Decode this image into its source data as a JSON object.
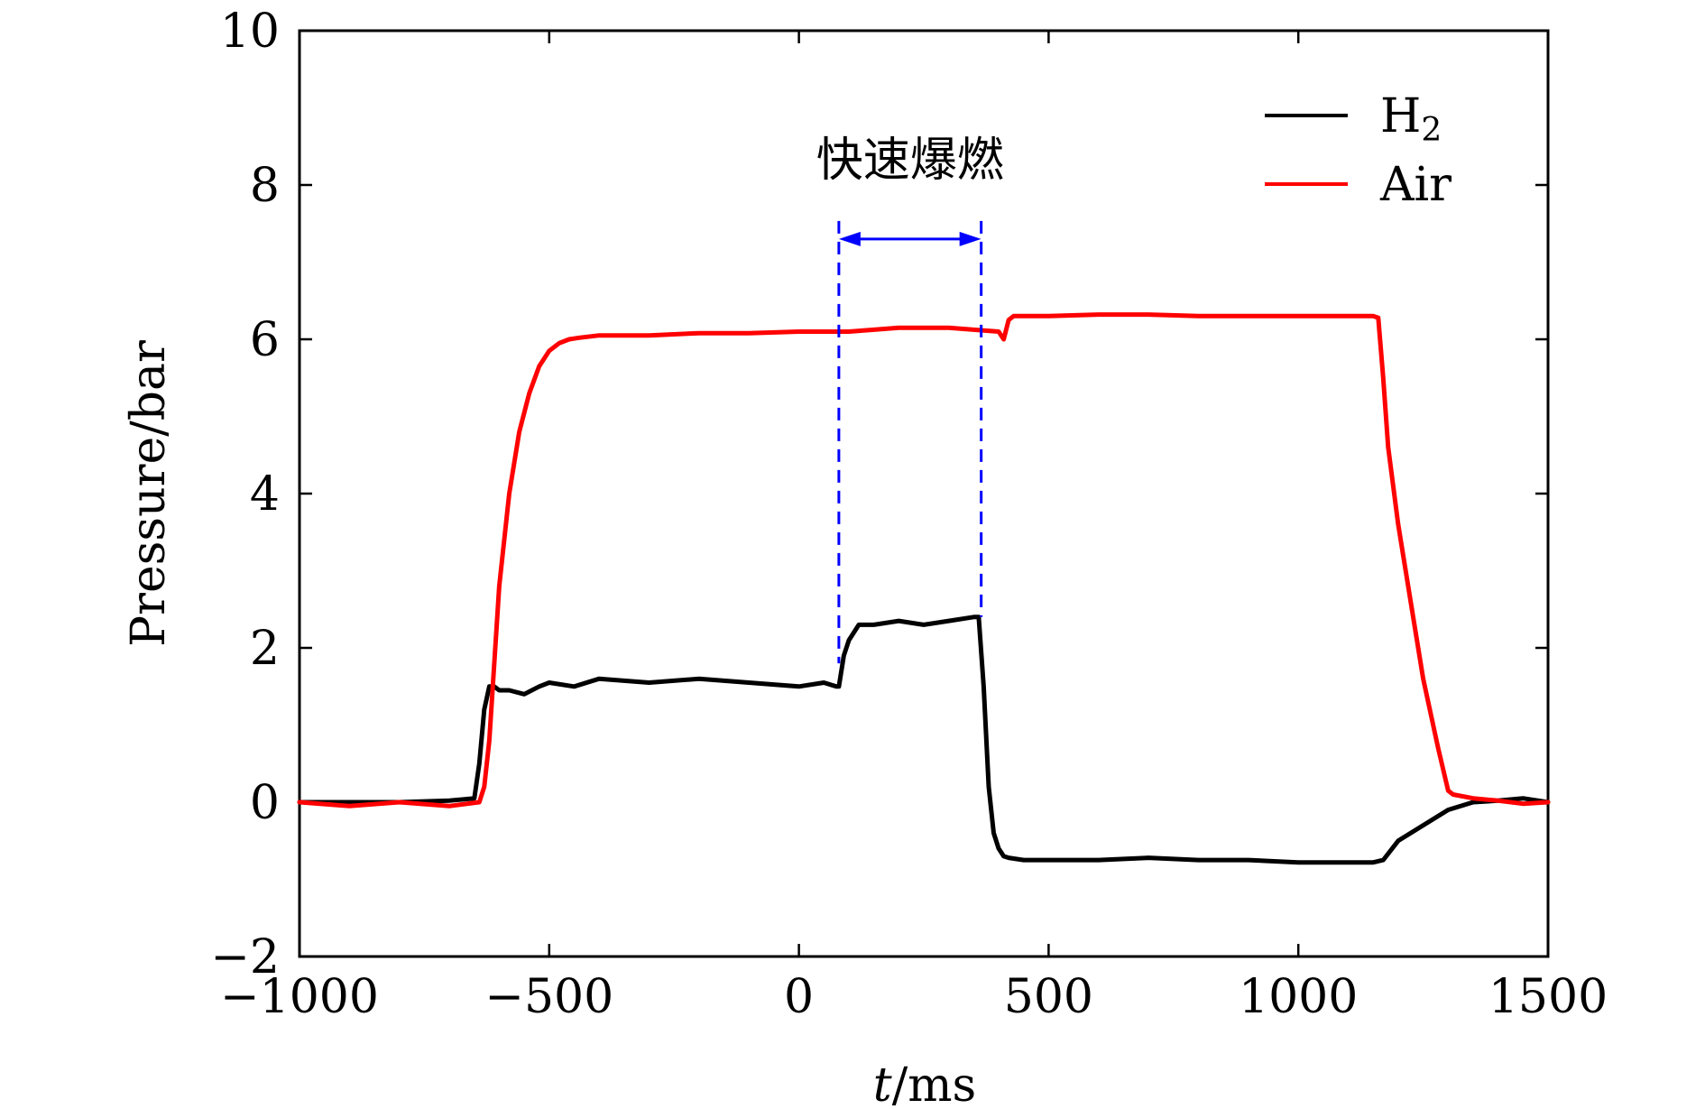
{
  "chart_data": {
    "type": "line",
    "title": "",
    "xlabel_var": "t",
    "xlabel_unit": "/ms",
    "ylabel": "Pressure/bar",
    "xlim": [
      -1000,
      1500
    ],
    "ylim": [
      -2,
      10
    ],
    "x_ticks": [
      -1000,
      -500,
      0,
      500,
      1000,
      1500
    ],
    "x_tick_labels": [
      "−1000",
      "−500",
      "0",
      "500",
      "1000",
      "1500"
    ],
    "y_ticks": [
      -2,
      0,
      2,
      4,
      6,
      8,
      10
    ],
    "y_tick_labels": [
      "−2",
      "0",
      "2",
      "4",
      "6",
      "8",
      "10"
    ],
    "legend": {
      "placement": "top-right",
      "entries": [
        {
          "series": "H2",
          "label_main": "H",
          "label_sub": "2"
        },
        {
          "series": "Air",
          "label_main": "Air",
          "label_sub": ""
        }
      ]
    },
    "annotation": {
      "text": "快速爆燃",
      "x_start": 80,
      "x_end": 365,
      "y": 7.3,
      "color": "#0000ff"
    },
    "series": [
      {
        "name": "H2",
        "color": "#000000",
        "x": [
          -1000,
          -900,
          -800,
          -700,
          -650,
          -640,
          -630,
          -620,
          -610,
          -600,
          -580,
          -550,
          -520,
          -500,
          -450,
          -400,
          -300,
          -200,
          -100,
          0,
          50,
          75,
          80,
          90,
          100,
          120,
          150,
          200,
          250,
          300,
          350,
          360,
          370,
          380,
          390,
          400,
          410,
          420,
          450,
          500,
          600,
          700,
          800,
          900,
          1000,
          1100,
          1150,
          1170,
          1200,
          1250,
          1300,
          1350,
          1400,
          1450,
          1500
        ],
        "y": [
          0.0,
          0.0,
          0.0,
          0.02,
          0.05,
          0.5,
          1.2,
          1.5,
          1.5,
          1.45,
          1.45,
          1.4,
          1.5,
          1.55,
          1.5,
          1.6,
          1.55,
          1.6,
          1.55,
          1.5,
          1.55,
          1.5,
          1.5,
          1.9,
          2.1,
          2.3,
          2.3,
          2.35,
          2.3,
          2.35,
          2.4,
          2.4,
          1.5,
          0.2,
          -0.4,
          -0.6,
          -0.7,
          -0.72,
          -0.75,
          -0.75,
          -0.75,
          -0.72,
          -0.75,
          -0.75,
          -0.78,
          -0.78,
          -0.78,
          -0.75,
          -0.5,
          -0.3,
          -0.1,
          0.0,
          0.02,
          0.05,
          0.0
        ]
      },
      {
        "name": "Air",
        "color": "#ff0000",
        "x": [
          -1000,
          -900,
          -800,
          -700,
          -640,
          -630,
          -620,
          -610,
          -600,
          -580,
          -560,
          -540,
          -520,
          -500,
          -480,
          -460,
          -440,
          -400,
          -300,
          -200,
          -100,
          0,
          100,
          200,
          300,
          400,
          410,
          420,
          430,
          450,
          500,
          600,
          700,
          800,
          900,
          1000,
          1100,
          1150,
          1160,
          1170,
          1180,
          1200,
          1230,
          1250,
          1280,
          1300,
          1310,
          1350,
          1400,
          1450,
          1500
        ],
        "y": [
          0.0,
          -0.05,
          0.0,
          -0.05,
          0.0,
          0.2,
          0.8,
          1.8,
          2.8,
          4.0,
          4.8,
          5.3,
          5.65,
          5.85,
          5.95,
          6.0,
          6.02,
          6.05,
          6.05,
          6.08,
          6.08,
          6.1,
          6.1,
          6.15,
          6.15,
          6.1,
          6.0,
          6.25,
          6.3,
          6.3,
          6.3,
          6.32,
          6.32,
          6.3,
          6.3,
          6.3,
          6.3,
          6.3,
          6.28,
          5.5,
          4.6,
          3.6,
          2.4,
          1.6,
          0.7,
          0.15,
          0.1,
          0.05,
          0.02,
          -0.02,
          0.0
        ]
      }
    ]
  }
}
